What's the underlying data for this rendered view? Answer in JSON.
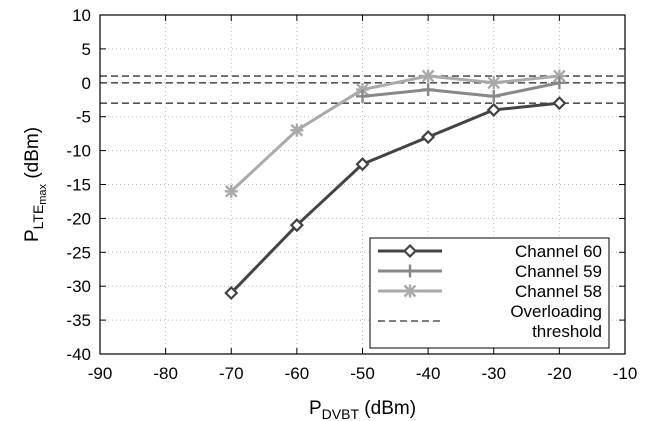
{
  "chart_data": {
    "type": "line",
    "xlabel": {
      "main": "P",
      "sub": "DVBT",
      "suffix": " (dBm)"
    },
    "ylabel": {
      "main": "P",
      "sub": "LTE",
      "subsub": "max",
      "suffix": " (dBm)"
    },
    "xlim": [
      -90,
      -10
    ],
    "ylim": [
      -40,
      10
    ],
    "xticks": [
      -90,
      -80,
      -70,
      -60,
      -50,
      -40,
      -30,
      -20,
      -10
    ],
    "yticks": [
      -40,
      -35,
      -30,
      -25,
      -20,
      -15,
      -10,
      -5,
      0,
      5,
      10
    ],
    "grid": true,
    "legend_position": "bottom-right",
    "series": [
      {
        "name": "Channel 60",
        "color": "#444444",
        "marker": "diamond",
        "x": [
          -70,
          -60,
          -50,
          -40,
          -30,
          -20
        ],
        "y": [
          -31,
          -21,
          -12,
          -8,
          -4,
          -3
        ]
      },
      {
        "name": "Channel 59",
        "color": "#888888",
        "marker": "plus",
        "x": [
          -50,
          -40,
          -30,
          -20
        ],
        "y": [
          -2,
          -1,
          -2,
          0
        ]
      },
      {
        "name": "Channel 58",
        "color": "#aaaaaa",
        "marker": "star",
        "x": [
          -70,
          -60,
          -50,
          -40,
          -30,
          -20
        ],
        "y": [
          -16,
          -7,
          -1,
          1,
          0,
          1
        ]
      }
    ],
    "threshold": {
      "legend_lines": [
        "Overloading",
        "threshold"
      ],
      "color": "#555555",
      "values": [
        1,
        0,
        -3
      ]
    }
  }
}
